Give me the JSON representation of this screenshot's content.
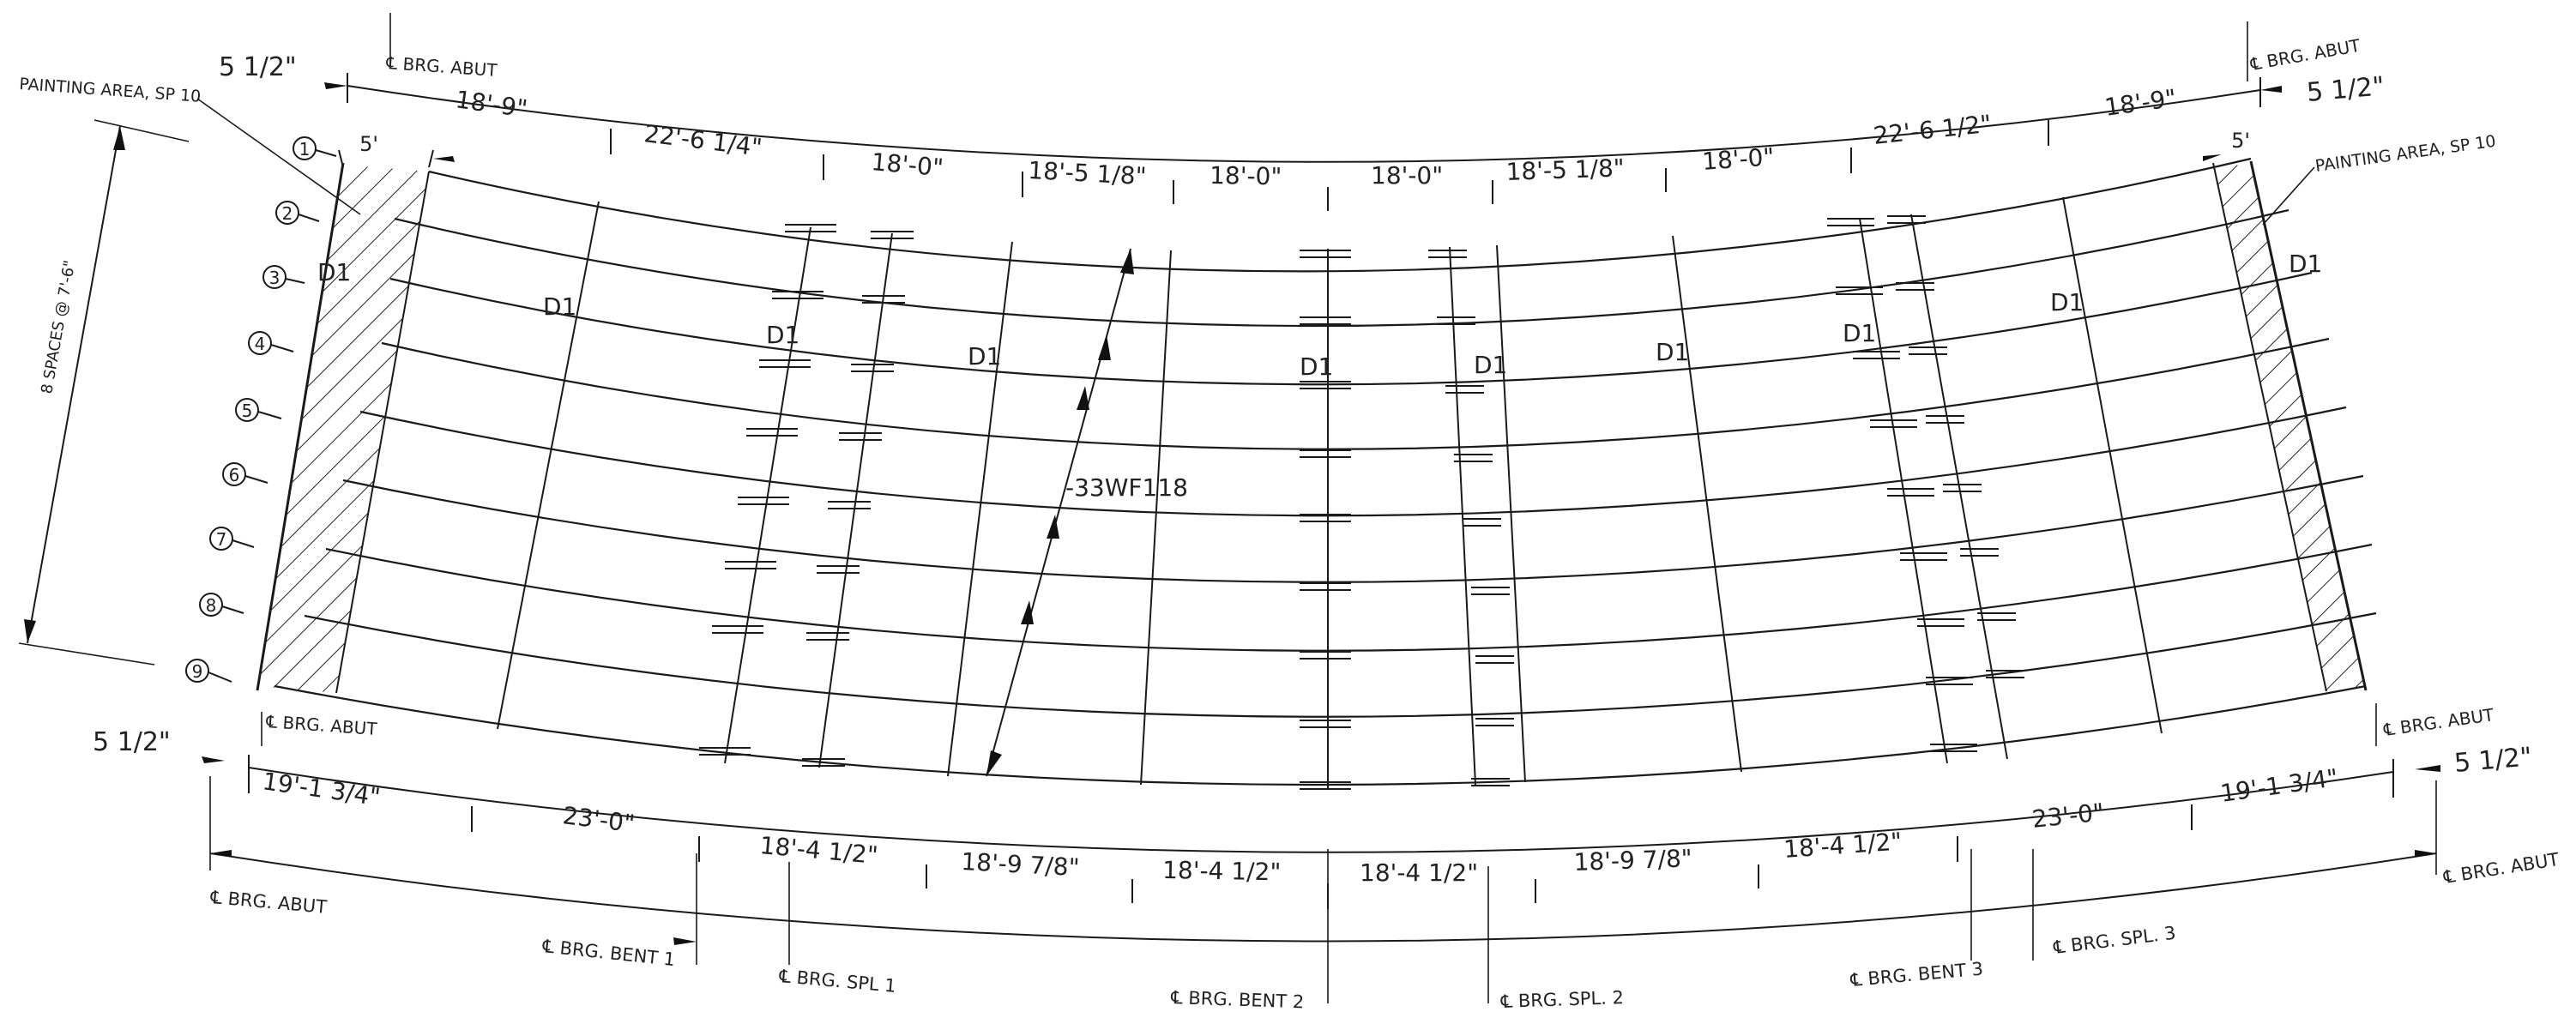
{
  "drawing": {
    "girder_labels": [
      "1",
      "2",
      "3",
      "4",
      "5",
      "6",
      "7",
      "8",
      "9"
    ],
    "girder_spacing_note": "8 SPACES @ 7'-6\"",
    "painting_area_note": "PAINTING AREA, SP 10",
    "painting_width": "5'",
    "diaphragm_label": "D1",
    "beam_label": "-33WF118",
    "abutment_bearing_label": "℄ BRG. ABUT",
    "top_end_offset": "5 1/2\"",
    "bottom_end_offset": "5 1/2\"",
    "top_dimensions": [
      "18'-9\"",
      "22'-6 1/4\"",
      "18'-0\"",
      "18'-5 1/8\"",
      "18'-0\"",
      "18'-0\"",
      "18'-5 1/8\"",
      "18'-0\"",
      "22'-6 1/2\"",
      "18'-9\""
    ],
    "bottom_dimensions": [
      "19'-1 3/4\"",
      "23'-0\"",
      "18'-4 1/2\"",
      "18'-9 7/8\"",
      "18'-4 1/2\"",
      "18'-4 1/2\"",
      "18'-9 7/8\"",
      "18'-4 1/2\"",
      "23'-0\"",
      "19'-1 3/4\""
    ],
    "support_labels": [
      "℄ BRG. ABUT",
      "℄ BRG. BENT 1",
      "℄ BRG. SPL 1",
      "℄ BRG. BENT 2",
      "℄ BRG. SPL. 2",
      "℄ BRG. BENT 3",
      "℄ BRG. SPL. 3",
      "℄ BRG. ABUT"
    ]
  }
}
